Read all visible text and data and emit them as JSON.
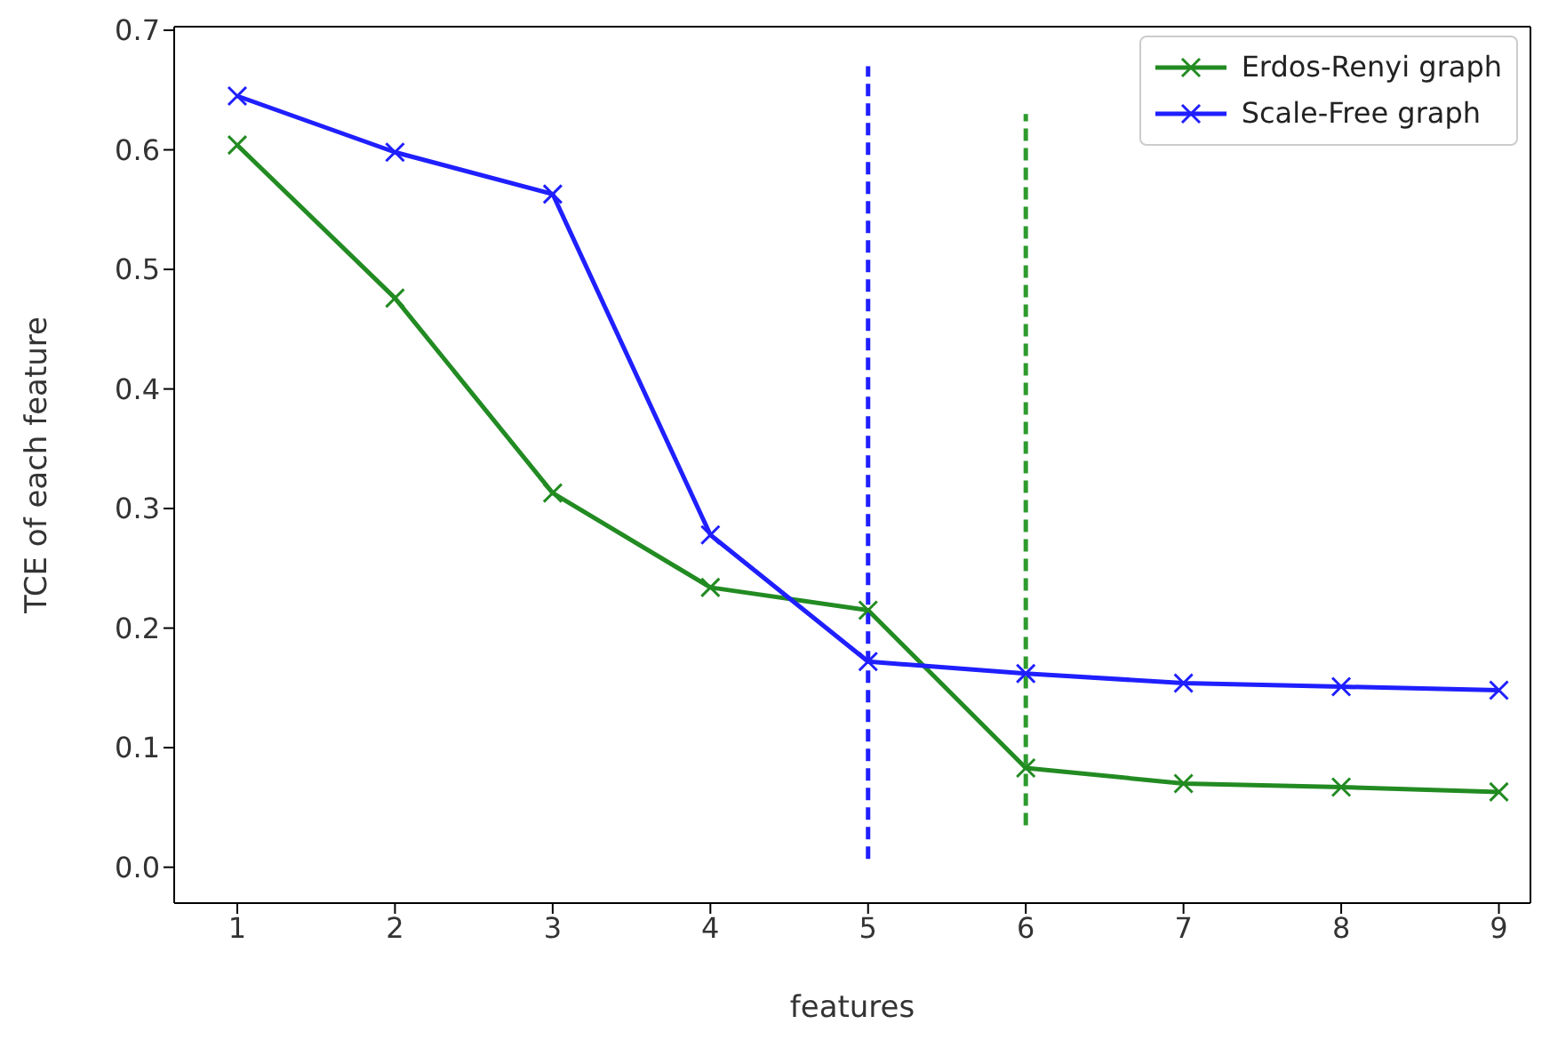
{
  "chart_data": {
    "type": "line",
    "xlabel": "features",
    "ylabel": "TCE of each feature",
    "xlim": [
      0.6,
      9.2
    ],
    "xticks": [
      1,
      2,
      3,
      4,
      5,
      6,
      7,
      8,
      9
    ],
    "ylim": [
      -0.03,
      0.703
    ],
    "yticks": [
      {
        "value": 0,
        "label": "0.0"
      },
      0.1,
      0.2,
      0.3,
      0.4,
      0.5,
      0.6,
      0.7
    ],
    "marker": "cross",
    "legend": "top right",
    "grid": false,
    "series": [
      {
        "name": "Erdos-Renyi graph",
        "color": "#228b22",
        "x": [
          1,
          2,
          3,
          4,
          5,
          6,
          7,
          8,
          9
        ],
        "values": [
          0.604,
          0.476,
          0.313,
          0.234,
          0.215,
          0.083,
          0.07,
          0.067,
          0.063
        ]
      },
      {
        "name": "Scale-Free graph",
        "color": "#1f1fff",
        "x": [
          1,
          2,
          3,
          4,
          5,
          6,
          7,
          8,
          9
        ],
        "values": [
          0.645,
          0.598,
          0.563,
          0.278,
          0.172,
          0.162,
          0.154,
          0.151,
          0.148
        ]
      },
      {
        "color": "#1f1fff",
        "x": [
          5,
          5
        ],
        "values": [
          0.007,
          0.67
        ],
        "line_style": "dashed",
        "marker": "none"
      },
      {
        "color": "#2e9b2e",
        "x": [
          6,
          6
        ],
        "values": [
          0.035,
          0.63
        ],
        "line_style": "dashed",
        "marker": "none"
      }
    ]
  }
}
